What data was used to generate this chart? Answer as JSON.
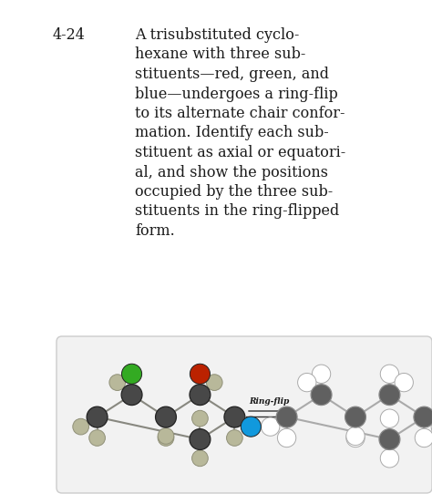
{
  "title_number": "4-24",
  "bg_color": "#ffffff",
  "text_color": "#1a1a1a",
  "box_bg": "#f2f2f2",
  "box_border": "#cccccc",
  "ring_flip_label": "Ring-flip",
  "carbon_color": "#484848",
  "hydrogen_color_left": "#b8b89a",
  "red_sub": "#bb2200",
  "green_sub": "#33aa22",
  "blue_sub": "#1199dd",
  "arrow_color": "#333333",
  "problem_lines": [
    "A trisubstituted cyclo-",
    "hexane with three sub-",
    "stituents—red, green, and",
    "blue—undergoes a ring-flip",
    "to its alternate chair confor-",
    "mation. Identify each sub-",
    "stituent as axial or equatori-",
    "al, and show the positions",
    "occupied by the three sub-",
    "stituents in the ring-flipped",
    "form."
  ]
}
